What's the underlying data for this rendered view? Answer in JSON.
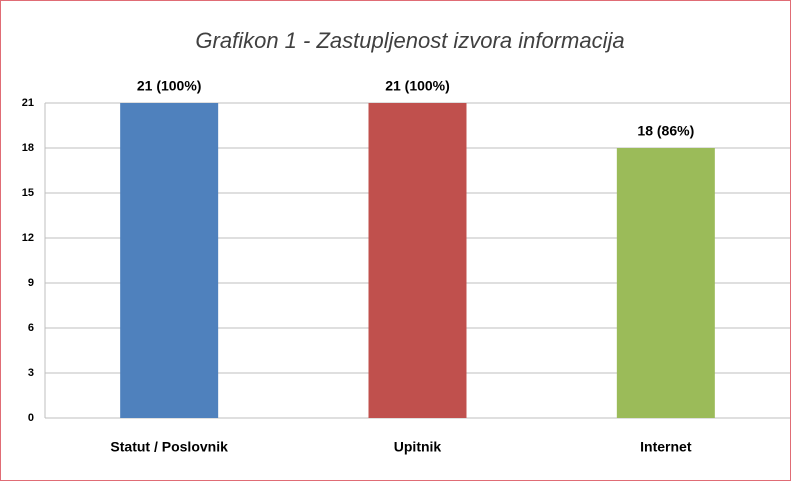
{
  "chart_data": {
    "type": "bar",
    "title": "Grafikon 1 - Zastupljenost izvora informacija",
    "categories": [
      "Statut / Poslovnik",
      "Upitnik",
      "Internet"
    ],
    "values": [
      21,
      21,
      18
    ],
    "value_labels": [
      "21 (100%)",
      "21 (100%)",
      "18 (86%)"
    ],
    "colors": [
      "#4f81bd",
      "#c0504d",
      "#9bbb59"
    ],
    "ylim": [
      0,
      21
    ],
    "yticks": [
      0,
      3,
      6,
      9,
      12,
      15,
      18,
      21
    ],
    "grid": true
  }
}
